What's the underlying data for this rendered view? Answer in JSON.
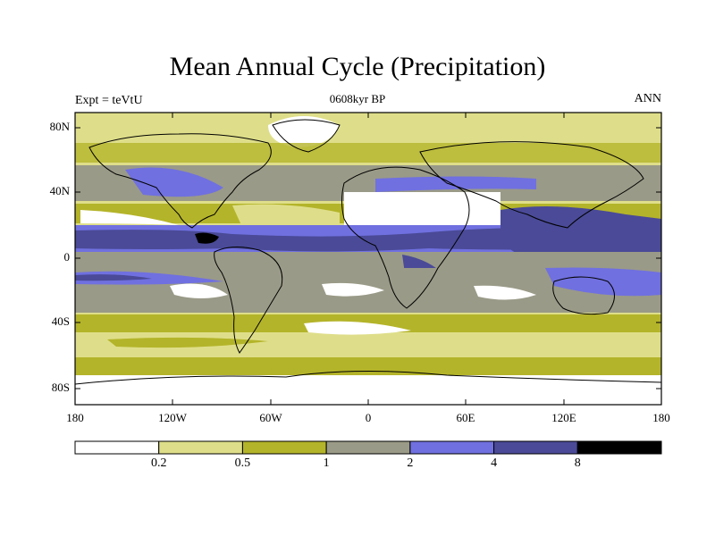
{
  "map": {
    "title": "Mean Annual Cycle (Precipitation)",
    "subtitle": "0608kyr BP",
    "left_label": "Expt = teVtU",
    "right_label": "ANN",
    "lat_ticks": [
      "80N",
      "40N",
      "0",
      "40S",
      "80S"
    ],
    "lon_ticks": [
      "180",
      "120W",
      "60W",
      "0",
      "60E",
      "120E",
      "180"
    ],
    "colorbar": {
      "labels": [
        "0.2",
        "0.5",
        "1",
        "2",
        "4",
        "8"
      ],
      "colors": [
        "#ffffff",
        "#dede8a",
        "#b4b42a",
        "#9a9a88",
        "#7070e0",
        "#4a4a98",
        "#000000"
      ]
    }
  }
}
